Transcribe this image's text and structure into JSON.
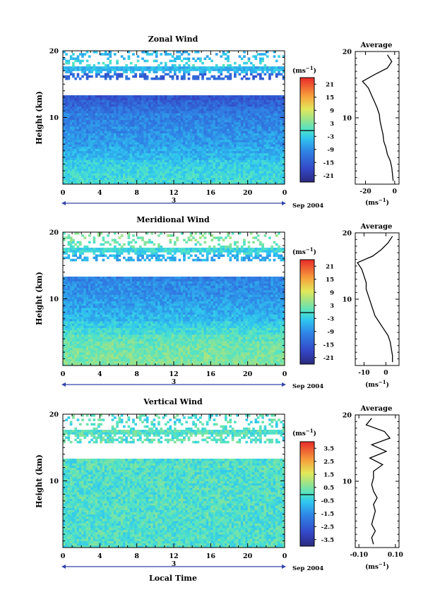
{
  "chart_data": [
    {
      "type": "heatmap",
      "title": "Zonal Wind",
      "ylabel": "Height (km)",
      "ylim": [
        0,
        20
      ],
      "yticks": [
        10,
        20
      ],
      "xlim": [
        0,
        24
      ],
      "xticks": [
        "0",
        "4",
        "8",
        "12",
        "16",
        "20",
        "0"
      ],
      "date_marker": "3",
      "date_label": "Sep 2004",
      "colorbar": {
        "unit_base": "(ms",
        "unit_exp": "−1",
        "unit_close": ")",
        "ticks": [
          "21",
          "15",
          "9",
          "3",
          "-3",
          "-9",
          "-15",
          "-21"
        ],
        "range": [
          -24,
          24
        ]
      },
      "profile": {
        "title": "Average",
        "xticks": [
          "-20",
          "0"
        ],
        "xlim": [
          -27,
          3
        ],
        "xlabel_base": "(ms",
        "xlabel_exp": "−1",
        "xlabel_close": ")",
        "heights": [
          0.5,
          1.5,
          2.5,
          3.5,
          4.5,
          5.5,
          6.5,
          7.5,
          8.5,
          9.5,
          10.5,
          11.5,
          12.5,
          13.5,
          14.5,
          15.5,
          16.5,
          17.5,
          18.5,
          19.5
        ],
        "values": [
          -1,
          -1.5,
          -2,
          -3,
          -5,
          -6,
          -7.5,
          -8,
          -9,
          -10,
          -10.5,
          -12,
          -14,
          -16,
          -18,
          -22,
          -14,
          -5,
          -2,
          -5
        ]
      }
    },
    {
      "type": "heatmap",
      "title": "Meridional Wind",
      "ylabel": "Height (km)",
      "ylim": [
        0,
        20
      ],
      "yticks": [
        10,
        20
      ],
      "xlim": [
        0,
        24
      ],
      "xticks": [
        "0",
        "4",
        "8",
        "12",
        "16",
        "20",
        "0"
      ],
      "date_marker": "3",
      "date_label": "Sep 2004",
      "colorbar": {
        "unit_base": "(ms",
        "unit_exp": "−1",
        "unit_close": ")",
        "ticks": [
          "21",
          "15",
          "9",
          "3",
          "-3",
          "-9",
          "-15",
          "-21"
        ],
        "range": [
          -24,
          24
        ]
      },
      "profile": {
        "title": "Average",
        "xticks": [
          "-10",
          "0"
        ],
        "xlim": [
          -14,
          6
        ],
        "xlabel_base": "(ms",
        "xlabel_exp": "−1",
        "xlabel_close": ")",
        "heights": [
          0.5,
          1.5,
          2.5,
          3.5,
          4.5,
          5.5,
          6.5,
          7.5,
          8.5,
          9.5,
          10.5,
          11.5,
          12.5,
          13.5,
          14.5,
          15.5,
          16.5,
          17.5,
          18.5,
          19.5
        ],
        "values": [
          3,
          3,
          2.5,
          2,
          1,
          -1,
          -3,
          -5,
          -6,
          -7,
          -8,
          -9,
          -9,
          -10,
          -11,
          -13,
          -6,
          -2,
          1,
          3
        ]
      }
    },
    {
      "type": "heatmap",
      "title": "Vertical Wind",
      "ylabel": "Height (km)",
      "ylim": [
        0,
        20
      ],
      "yticks": [
        10,
        20
      ],
      "xlim": [
        0,
        24
      ],
      "xticks": [
        "0",
        "4",
        "8",
        "12",
        "16",
        "20",
        "0"
      ],
      "xlabel": "Local Time",
      "date_marker": "3",
      "date_label": "Sep 2004",
      "colorbar": {
        "unit_base": "(ms",
        "unit_exp": "−1",
        "unit_close": ")",
        "ticks": [
          "3.5",
          "2.5",
          "1.5",
          "0.5",
          "-0.5",
          "-1.5",
          "-2.5",
          "-3.5"
        ],
        "range": [
          -4,
          4
        ]
      },
      "profile": {
        "title": "Average",
        "xticks": [
          "-0.10",
          "0.10"
        ],
        "xlim": [
          -0.12,
          0.12
        ],
        "xlabel_base": "(ms",
        "xlabel_exp": "−1",
        "xlabel_close": ")",
        "heights": [
          0.5,
          1.5,
          2.5,
          3.5,
          4.5,
          5.5,
          6.5,
          7.5,
          8.5,
          9.5,
          10.5,
          11.5,
          12.5,
          13.5,
          14.5,
          15.5,
          16.5,
          17.5,
          18.5,
          19.5
        ],
        "values": [
          -0.02,
          -0.03,
          -0.01,
          -0.03,
          -0.02,
          -0.01,
          -0.02,
          0.0,
          -0.02,
          -0.03,
          -0.02,
          -0.02,
          0.03,
          -0.04,
          0.05,
          -0.03,
          0.07,
          0.04,
          -0.06,
          -0.03
        ]
      }
    }
  ]
}
